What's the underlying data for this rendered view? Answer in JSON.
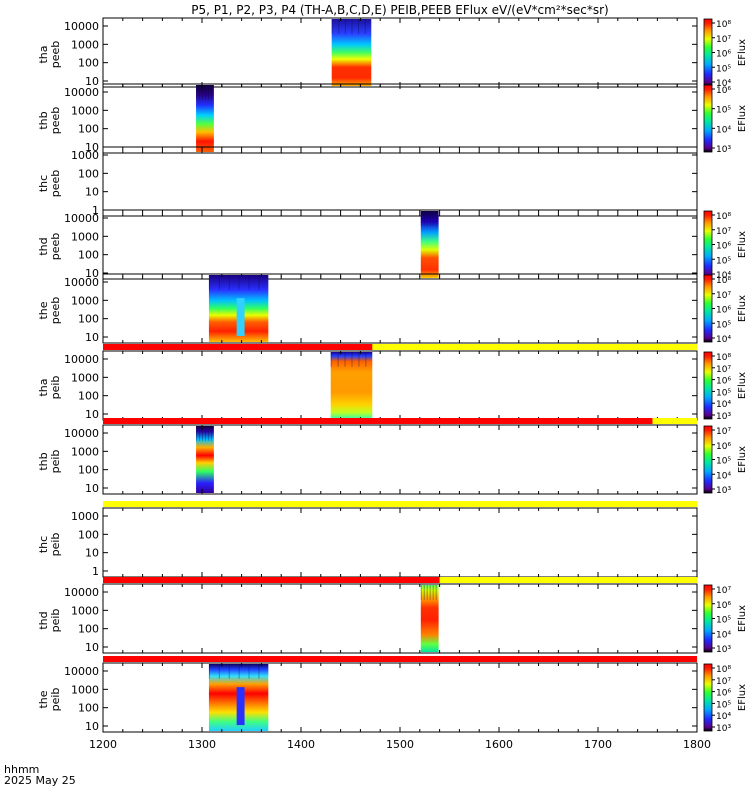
{
  "title": "P5, P1, P2, P3, P4 (TH-A,B,C,D,E) PEIB,PEEB EFlux eV/(eV*cm²*sec*sr)",
  "time_label": "hhmm",
  "date_label": "2025 May 25",
  "colorbar_label": "EFlux",
  "colors": {
    "flag_red": "#ff0000",
    "flag_yellow": "#ffff00",
    "background": "#ffffff",
    "axis": "#000000"
  },
  "chart_data": {
    "type": "heatmap",
    "x_ticks": [
      "1200",
      "1300",
      "1400",
      "1500",
      "1600",
      "1700",
      "1800"
    ],
    "xlim": [
      1200,
      1800
    ],
    "panels": [
      {
        "name": "tha-peeb",
        "probe": "tha",
        "instrument": "peeb",
        "ylabel_line1": "tha",
        "ylabel_line2": "peeb",
        "y_ticks": [
          "10",
          "100",
          "1000",
          "10000"
        ],
        "data_segments": [
          {
            "start": 1431,
            "end": 1471,
            "style": "electron-a"
          }
        ],
        "colorbar": {
          "ticks": [
            "10⁴",
            "10⁵",
            "10⁶",
            "10⁷",
            "10⁸"
          ]
        },
        "flag_above": null
      },
      {
        "name": "thb-peeb",
        "probe": "thb",
        "instrument": "peeb",
        "ylabel_line1": "thb",
        "ylabel_line2": "peeb",
        "y_ticks": [
          "10",
          "100",
          "1000",
          "10000"
        ],
        "data_segments": [
          {
            "start": 1294,
            "end": 1312,
            "style": "electron-b"
          }
        ],
        "colorbar": {
          "ticks": [
            "10³",
            "10⁴",
            "10⁵",
            "10⁶"
          ]
        },
        "flag_above": null
      },
      {
        "name": "thc-peeb",
        "probe": "thc",
        "instrument": "peeb",
        "ylabel_line1": "thc",
        "ylabel_line2": "peeb",
        "y_ticks": [
          "1",
          "10",
          "100",
          "1000"
        ],
        "data_segments": [],
        "colorbar": null,
        "flag_above": null
      },
      {
        "name": "thd-peeb",
        "probe": "thd",
        "instrument": "peeb",
        "ylabel_line1": "thd",
        "ylabel_line2": "peeb",
        "y_ticks": [
          "10",
          "100",
          "1000",
          "10000"
        ],
        "data_segments": [
          {
            "start": 1521,
            "end": 1539,
            "style": "electron-d"
          }
        ],
        "colorbar": {
          "ticks": [
            "10⁴",
            "10⁵",
            "10⁶",
            "10⁷",
            "10⁸"
          ]
        },
        "flag_above": null
      },
      {
        "name": "the-peeb",
        "probe": "the",
        "instrument": "peeb",
        "ylabel_line1": "the",
        "ylabel_line2": "peeb",
        "y_ticks": [
          "10",
          "100",
          "1000",
          "10000"
        ],
        "data_segments": [
          {
            "start": 1307,
            "end": 1367,
            "style": "electron-e"
          }
        ],
        "colorbar": {
          "ticks": [
            "10⁴",
            "10⁵",
            "10⁶",
            "10⁷",
            "10⁸"
          ]
        },
        "flag_above": null
      },
      {
        "name": "tha-peib",
        "probe": "tha",
        "instrument": "peib",
        "ylabel_line1": "tha",
        "ylabel_line2": "peib",
        "y_ticks": [
          "10",
          "100",
          "1000",
          "10000"
        ],
        "data_segments": [
          {
            "start": 1430,
            "end": 1472,
            "style": "ion-a"
          }
        ],
        "colorbar": {
          "ticks": [
            "10³",
            "10⁴",
            "10⁵",
            "10⁶",
            "10⁷",
            "10⁸"
          ]
        },
        "flag_above": {
          "red_until": 1472
        }
      },
      {
        "name": "thb-peib",
        "probe": "thb",
        "instrument": "peib",
        "ylabel_line1": "thb",
        "ylabel_line2": "peib",
        "y_ticks": [
          "10",
          "100",
          "1000",
          "10000"
        ],
        "data_segments": [
          {
            "start": 1294,
            "end": 1312,
            "style": "ion-b"
          }
        ],
        "colorbar": {
          "ticks": [
            "10³",
            "10⁴",
            "10⁵",
            "10⁶",
            "10⁷"
          ]
        },
        "flag_above": {
          "red_until": 1755
        }
      },
      {
        "name": "thc-peib",
        "probe": "thc",
        "instrument": "peib",
        "ylabel_line1": "thc",
        "ylabel_line2": "peib",
        "y_ticks": [
          "1",
          "10",
          "100",
          "1000"
        ],
        "data_segments": [],
        "colorbar": null,
        "flag_above": {
          "red_until": 1200
        }
      },
      {
        "name": "thd-peib",
        "probe": "thd",
        "instrument": "peib",
        "ylabel_line1": "thd",
        "ylabel_line2": "peib",
        "y_ticks": [
          "10",
          "100",
          "1000",
          "10000"
        ],
        "data_segments": [
          {
            "start": 1521,
            "end": 1539,
            "style": "ion-d"
          }
        ],
        "colorbar": {
          "ticks": [
            "10³",
            "10⁴",
            "10⁵",
            "10⁶",
            "10⁷"
          ]
        },
        "flag_above": {
          "red_until": 1540
        }
      },
      {
        "name": "the-peib",
        "probe": "the",
        "instrument": "peib",
        "ylabel_line1": "the",
        "ylabel_line2": "peib",
        "y_ticks": [
          "10",
          "100",
          "1000",
          "10000"
        ],
        "data_segments": [
          {
            "start": 1307,
            "end": 1367,
            "style": "ion-e"
          }
        ],
        "colorbar": {
          "ticks": [
            "10³",
            "10⁴",
            "10⁵",
            "10⁶",
            "10⁷",
            "10⁸"
          ]
        },
        "flag_above": {
          "red_until": 1800
        }
      }
    ]
  }
}
